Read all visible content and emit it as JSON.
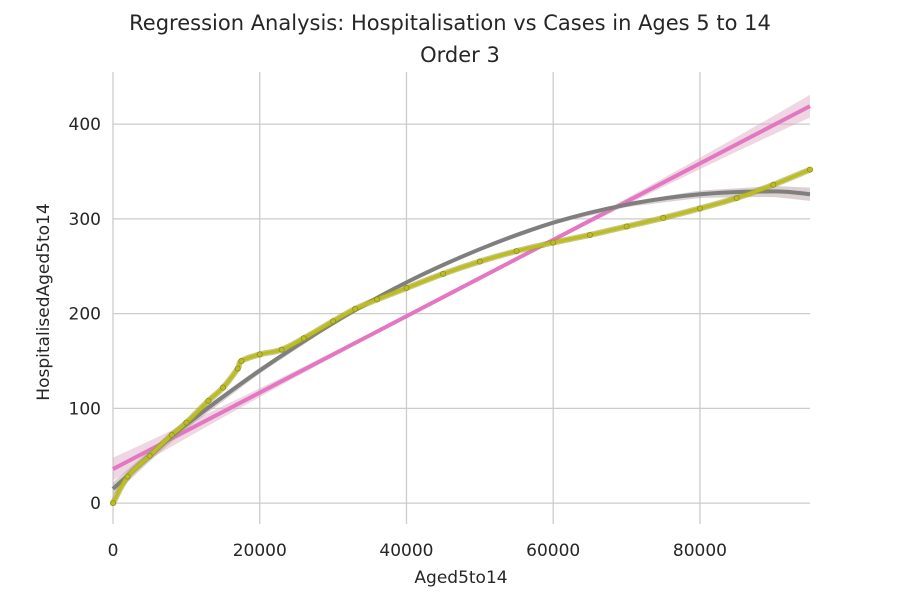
{
  "chart_data": {
    "type": "scatter",
    "title": "Regression Analysis: Hospitalisation vs Cases in Ages 5 to 14",
    "subtitle": "Order 3",
    "xlabel": "Aged5to14",
    "ylabel": "HospitalisedAged5to14",
    "xlim": [
      0,
      95000
    ],
    "ylim": [
      -22,
      455
    ],
    "xticks": [
      0,
      20000,
      40000,
      60000,
      80000
    ],
    "xtick_labels": [
      "0",
      "20000",
      "40000",
      "60000",
      "80000"
    ],
    "yticks": [
      0,
      100,
      200,
      300,
      400
    ],
    "ytick_labels": [
      "0",
      "100",
      "200",
      "300",
      "400"
    ],
    "grid": true,
    "series": [
      {
        "kind": "regression-line",
        "color": "#e377c2",
        "band_color": "#d9a6c0",
        "x": [
          0,
          95000
        ],
        "y": [
          36,
          419
        ],
        "ci_halfwidth_end": 12
      },
      {
        "kind": "regression-curve",
        "color": "#7f7f7f",
        "band_color": "#b09a9a",
        "x": [
          0,
          5000,
          10000,
          20000,
          30000,
          40000,
          50000,
          60000,
          70000,
          80000,
          90000,
          95000
        ],
        "y": [
          15,
          50,
          83,
          140,
          190,
          233,
          268,
          296,
          315,
          326,
          329,
          326
        ],
        "ci_halfwidth_end": 7
      },
      {
        "kind": "scatter",
        "color": "#bcbd22",
        "x": [
          0,
          2000,
          5000,
          8000,
          10000,
          13000,
          15000,
          17000,
          17500,
          20000,
          23000,
          26000,
          30000,
          33000,
          36000,
          40000,
          45000,
          50000,
          55000,
          60000,
          65000,
          70000,
          75000,
          80000,
          85000,
          90000,
          95000
        ],
        "y": [
          0,
          28,
          50,
          72,
          85,
          108,
          122,
          142,
          150,
          157,
          162,
          174,
          192,
          205,
          215,
          227,
          242,
          255,
          266,
          275,
          283,
          292,
          301,
          311,
          322,
          336,
          352
        ]
      }
    ]
  }
}
